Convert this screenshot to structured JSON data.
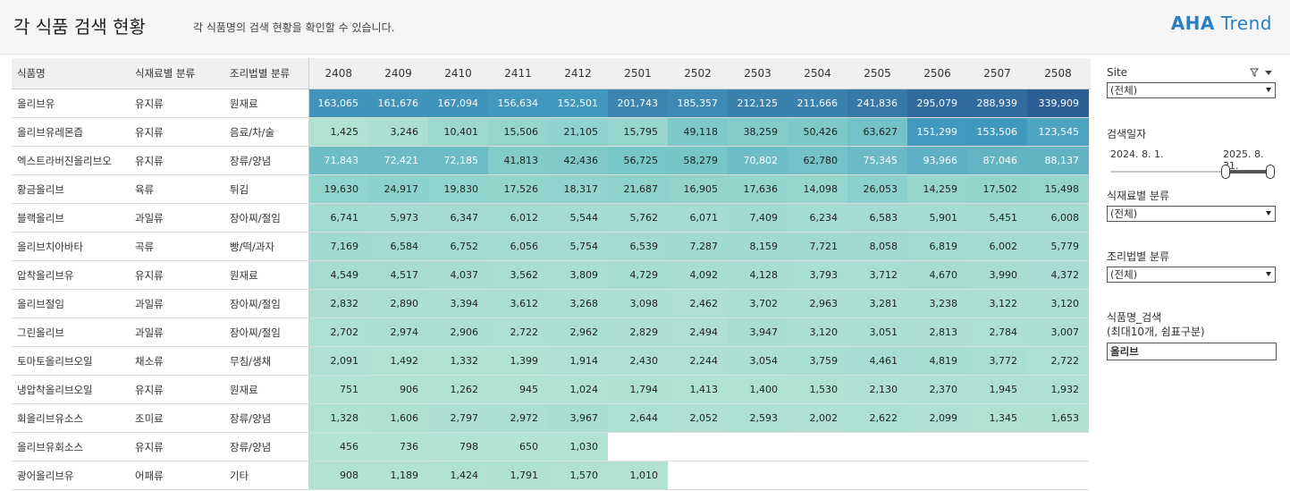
{
  "header": {
    "title": "각 식품 검색 현황",
    "subtitle": "각 식품명의 검색 현황을 확인할 수 있습니다.",
    "logo_bold": "AHA",
    "logo_rest": "Trend"
  },
  "table": {
    "dim_headers": [
      "식품명",
      "식재료별 분류",
      "조리법별 분류"
    ],
    "months": [
      "2408",
      "2409",
      "2410",
      "2411",
      "2412",
      "2501",
      "2502",
      "2503",
      "2504",
      "2505",
      "2506",
      "2507",
      "2508"
    ],
    "rows": [
      {
        "name": "올리브유",
        "ingredient": "유지류",
        "cooking": "원재료",
        "values": [
          163065,
          161676,
          167094,
          156634,
          152501,
          201743,
          185357,
          212125,
          211666,
          241836,
          295079,
          288939,
          339909
        ]
      },
      {
        "name": "올리브유레몬즙",
        "ingredient": "유지류",
        "cooking": "음료/차/술",
        "values": [
          1425,
          3246,
          10401,
          15506,
          21105,
          15795,
          49118,
          38259,
          50426,
          63627,
          151299,
          153506,
          123545
        ]
      },
      {
        "name": "엑스트라버진올리브오",
        "ingredient": "유지류",
        "cooking": "장류/양념",
        "values": [
          71843,
          72421,
          72185,
          41813,
          42436,
          56725,
          58279,
          70802,
          62780,
          75345,
          93966,
          87046,
          88137
        ]
      },
      {
        "name": "황금올리브",
        "ingredient": "육류",
        "cooking": "튀김",
        "values": [
          19630,
          24917,
          19830,
          17526,
          18317,
          21687,
          16905,
          17636,
          14098,
          26053,
          14259,
          17502,
          15498
        ]
      },
      {
        "name": "블랙올리브",
        "ingredient": "과일류",
        "cooking": "장아찌/절임",
        "values": [
          6741,
          5973,
          6347,
          6012,
          5544,
          5762,
          6071,
          7409,
          6234,
          6583,
          5901,
          5451,
          6008
        ]
      },
      {
        "name": "올리브치아바타",
        "ingredient": "곡류",
        "cooking": "빵/떡/과자",
        "values": [
          7169,
          6584,
          6752,
          6056,
          5754,
          6539,
          7287,
          8159,
          7721,
          8058,
          6819,
          6002,
          5779
        ]
      },
      {
        "name": "압착올리브유",
        "ingredient": "유지류",
        "cooking": "원재료",
        "values": [
          4549,
          4517,
          4037,
          3562,
          3809,
          4729,
          4092,
          4128,
          3793,
          3712,
          4670,
          3990,
          4372
        ]
      },
      {
        "name": "올리브절임",
        "ingredient": "과일류",
        "cooking": "장아찌/절임",
        "values": [
          2832,
          2890,
          3394,
          3612,
          3268,
          3098,
          2462,
          3702,
          2963,
          3281,
          3238,
          3122,
          3120
        ]
      },
      {
        "name": "그린올리브",
        "ingredient": "과일류",
        "cooking": "장아찌/절임",
        "values": [
          2702,
          2974,
          2906,
          2722,
          2962,
          2829,
          2494,
          3947,
          3120,
          3051,
          2813,
          2784,
          3007
        ]
      },
      {
        "name": "토마토올리브오일",
        "ingredient": "채소류",
        "cooking": "무침/생채",
        "values": [
          2091,
          1492,
          1332,
          1399,
          1914,
          2430,
          2244,
          3054,
          3759,
          4461,
          4819,
          3772,
          2722
        ]
      },
      {
        "name": "냉압착올리브오일",
        "ingredient": "유지류",
        "cooking": "원재료",
        "values": [
          751,
          906,
          1262,
          945,
          1024,
          1794,
          1413,
          1400,
          1530,
          2130,
          2370,
          1945,
          1932
        ]
      },
      {
        "name": "회올리브유소스",
        "ingredient": "조미료",
        "cooking": "장류/양념",
        "values": [
          1328,
          1606,
          2797,
          2972,
          3967,
          2644,
          2052,
          2593,
          2002,
          2622,
          2099,
          1345,
          1653
        ]
      },
      {
        "name": "올리브유회소스",
        "ingredient": "유지류",
        "cooking": "장류/양념",
        "values": [
          456,
          736,
          798,
          650,
          1030
        ]
      },
      {
        "name": "광어올리브유",
        "ingredient": "어패류",
        "cooking": "기타",
        "values": [
          908,
          1189,
          1424,
          1791,
          1570,
          1010
        ]
      }
    ]
  },
  "filters": {
    "site_label": "Site",
    "site_value": "(전체)",
    "date_label": "검색일자",
    "date_start": "2024. 8. 1.",
    "date_end": "2025. 8. 31.",
    "ingredient_label": "식재료별 분류",
    "ingredient_value": "(전체)",
    "cooking_label": "조리법별 분류",
    "cooking_value": "(전체)",
    "search_label_1": "식품명_검색",
    "search_label_2": "(최대10개, 쉼표구분)",
    "search_value": "올리브"
  },
  "colors": {
    "heat_low": "#b3e3d4",
    "heat_high": "#2d5f97",
    "accent": "#2a7fc1"
  }
}
